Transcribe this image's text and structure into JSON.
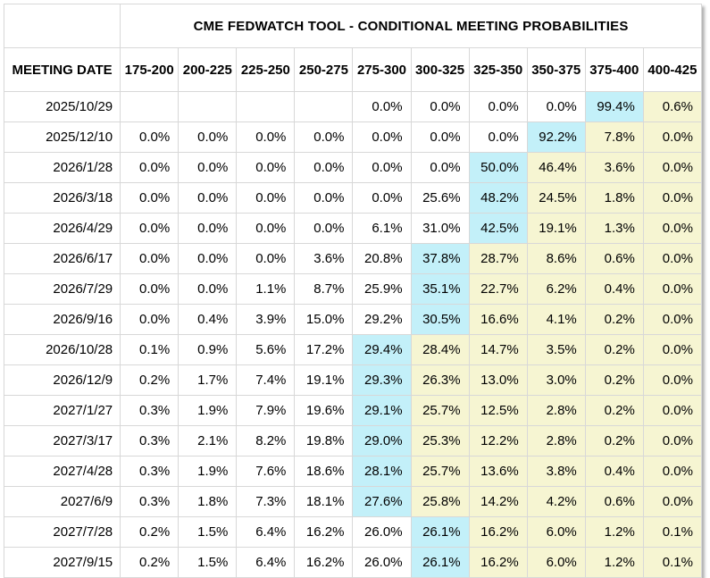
{
  "colors": {
    "highlight_current": "#c3f0f9",
    "highlight_above": "#f6f5d2",
    "border": "#d8d8d8",
    "text": "#000000",
    "background": "#ffffff"
  },
  "chart_data": {
    "type": "table",
    "title": "CME FEDWATCH TOOL - CONDITIONAL MEETING PROBABILITIES",
    "meeting_date_header": "MEETING DATE",
    "columns": [
      "175-200",
      "200-225",
      "225-250",
      "250-275",
      "275-300",
      "300-325",
      "325-350",
      "350-375",
      "375-400",
      "400-425"
    ],
    "legend_note_highlight_current_index": "cyan_index marks the cyan (modal) cell; cells right of it are pale yellow",
    "rows": [
      {
        "date": "2025/10/29",
        "values": [
          "",
          "",
          "",
          "",
          "0.0%",
          "0.0%",
          "0.0%",
          "0.0%",
          "99.4%",
          "0.6%"
        ],
        "cyan_index": 8
      },
      {
        "date": "2025/12/10",
        "values": [
          "0.0%",
          "0.0%",
          "0.0%",
          "0.0%",
          "0.0%",
          "0.0%",
          "0.0%",
          "92.2%",
          "7.8%",
          "0.0%"
        ],
        "cyan_index": 7
      },
      {
        "date": "2026/1/28",
        "values": [
          "0.0%",
          "0.0%",
          "0.0%",
          "0.0%",
          "0.0%",
          "0.0%",
          "50.0%",
          "46.4%",
          "3.6%",
          "0.0%"
        ],
        "cyan_index": 6
      },
      {
        "date": "2026/3/18",
        "values": [
          "0.0%",
          "0.0%",
          "0.0%",
          "0.0%",
          "0.0%",
          "25.6%",
          "48.2%",
          "24.5%",
          "1.8%",
          "0.0%"
        ],
        "cyan_index": 6
      },
      {
        "date": "2026/4/29",
        "values": [
          "0.0%",
          "0.0%",
          "0.0%",
          "0.0%",
          "6.1%",
          "31.0%",
          "42.5%",
          "19.1%",
          "1.3%",
          "0.0%"
        ],
        "cyan_index": 6
      },
      {
        "date": "2026/6/17",
        "values": [
          "0.0%",
          "0.0%",
          "0.0%",
          "3.6%",
          "20.8%",
          "37.8%",
          "28.7%",
          "8.6%",
          "0.6%",
          "0.0%"
        ],
        "cyan_index": 5
      },
      {
        "date": "2026/7/29",
        "values": [
          "0.0%",
          "0.0%",
          "1.1%",
          "8.7%",
          "25.9%",
          "35.1%",
          "22.7%",
          "6.2%",
          "0.4%",
          "0.0%"
        ],
        "cyan_index": 5
      },
      {
        "date": "2026/9/16",
        "values": [
          "0.0%",
          "0.4%",
          "3.9%",
          "15.0%",
          "29.2%",
          "30.5%",
          "16.6%",
          "4.1%",
          "0.2%",
          "0.0%"
        ],
        "cyan_index": 5
      },
      {
        "date": "2026/10/28",
        "values": [
          "0.1%",
          "0.9%",
          "5.6%",
          "17.2%",
          "29.4%",
          "28.4%",
          "14.7%",
          "3.5%",
          "0.2%",
          "0.0%"
        ],
        "cyan_index": 4
      },
      {
        "date": "2026/12/9",
        "values": [
          "0.2%",
          "1.7%",
          "7.4%",
          "19.1%",
          "29.3%",
          "26.3%",
          "13.0%",
          "3.0%",
          "0.2%",
          "0.0%"
        ],
        "cyan_index": 4
      },
      {
        "date": "2027/1/27",
        "values": [
          "0.3%",
          "1.9%",
          "7.9%",
          "19.6%",
          "29.1%",
          "25.7%",
          "12.5%",
          "2.8%",
          "0.2%",
          "0.0%"
        ],
        "cyan_index": 4
      },
      {
        "date": "2027/3/17",
        "values": [
          "0.3%",
          "2.1%",
          "8.2%",
          "19.8%",
          "29.0%",
          "25.3%",
          "12.2%",
          "2.8%",
          "0.2%",
          "0.0%"
        ],
        "cyan_index": 4
      },
      {
        "date": "2027/4/28",
        "values": [
          "0.3%",
          "1.9%",
          "7.6%",
          "18.6%",
          "28.1%",
          "25.7%",
          "13.6%",
          "3.8%",
          "0.4%",
          "0.0%"
        ],
        "cyan_index": 4
      },
      {
        "date": "2027/6/9",
        "values": [
          "0.3%",
          "1.8%",
          "7.3%",
          "18.1%",
          "27.6%",
          "25.8%",
          "14.2%",
          "4.2%",
          "0.6%",
          "0.0%"
        ],
        "cyan_index": 4
      },
      {
        "date": "2027/7/28",
        "values": [
          "0.2%",
          "1.5%",
          "6.4%",
          "16.2%",
          "26.0%",
          "26.1%",
          "16.2%",
          "6.0%",
          "1.2%",
          "0.1%"
        ],
        "cyan_index": 5
      },
      {
        "date": "2027/9/15",
        "values": [
          "0.2%",
          "1.5%",
          "6.4%",
          "16.2%",
          "26.0%",
          "26.1%",
          "16.2%",
          "6.0%",
          "1.2%",
          "0.1%"
        ],
        "cyan_index": 5
      }
    ]
  }
}
